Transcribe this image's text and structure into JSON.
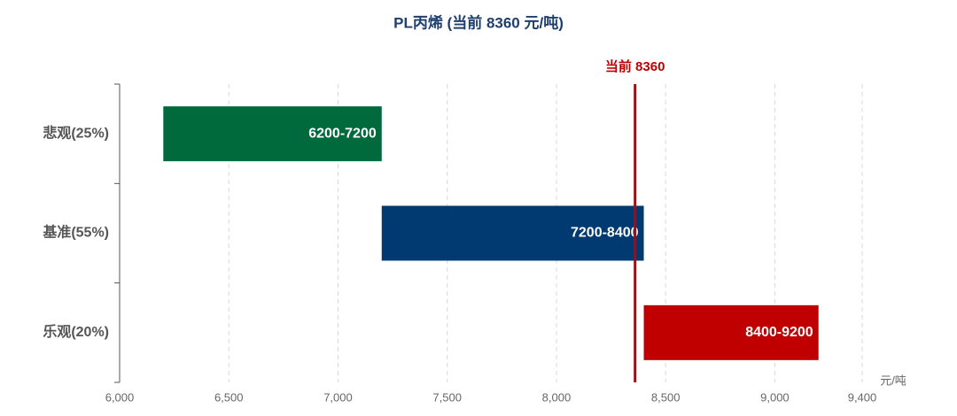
{
  "chart_data": {
    "type": "range_bar",
    "orientation": "horizontal",
    "title": "PL丙烯 (当前 8360 元/吨)",
    "categories": [
      "悲观(25%)",
      "基准(55%)",
      "乐观(20%)"
    ],
    "values": [
      [
        6200,
        7200
      ],
      [
        7200,
        8400
      ],
      [
        8400,
        9200
      ]
    ],
    "value_labels": [
      "6200-7200",
      "7200-8400",
      "8400-9200"
    ],
    "colors": [
      "#006a3c",
      "#003a70",
      "#c00000"
    ],
    "x_label": "元/吨",
    "xlim": [
      6000,
      9400
    ],
    "xticks": [
      {
        "value": 6000,
        "label": "6,000"
      },
      {
        "value": 6500,
        "label": "6,500"
      },
      {
        "value": 7000,
        "label": "7,000"
      },
      {
        "value": 7500,
        "label": "7,500"
      },
      {
        "value": 8000,
        "label": "8,000"
      },
      {
        "value": 8500,
        "label": "8,500"
      },
      {
        "value": 9000,
        "label": "9,000"
      },
      {
        "value": 9400,
        "label": "9,400"
      }
    ],
    "grid": true,
    "reference_line": {
      "value": 8360,
      "label": "当前 8360",
      "color": "#c00000"
    }
  }
}
